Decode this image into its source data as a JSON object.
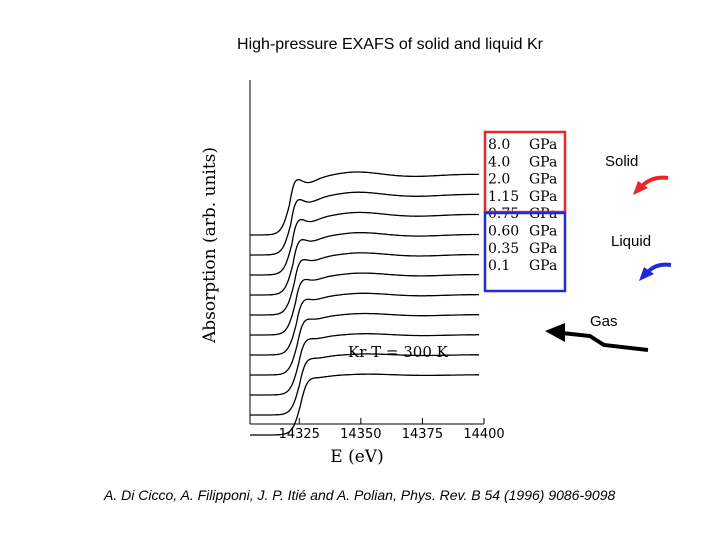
{
  "title": "High-pressure EXAFS of solid and liquid Kr",
  "citation": "A. Di Cicco, A. Filipponi, J. P. Itié and A. Polian, Phys. Rev. B 54 (1996) 9086-9098",
  "annotations": {
    "solid": "Solid",
    "liquid": "Liquid",
    "gas": "Gas",
    "condition": "Kr  T = 300 K"
  },
  "colors": {
    "solid": "#e8262b",
    "liquid": "#1f2bd6",
    "gas": "#000000"
  },
  "chart_data": {
    "type": "line",
    "title": "",
    "xlabel": "E (eV)",
    "ylabel": "Absorption (arb. units)",
    "xlim": [
      14305,
      14400
    ],
    "xticks": [
      14325,
      14350,
      14375,
      14400
    ],
    "x_tick_labels": [
      "14325",
      "14350",
      "14375",
      "14400"
    ],
    "y_ticks_shown": false,
    "grid": false,
    "legend": "right",
    "series": [
      {
        "name": "8.0 GPa",
        "unit": "GPa",
        "pressure": "8.0",
        "phase": "Solid"
      },
      {
        "name": "4.0 GPa",
        "unit": "GPa",
        "pressure": "4.0",
        "phase": "Solid"
      },
      {
        "name": "2.0 GPa",
        "unit": "GPa",
        "pressure": "2.0",
        "phase": "Solid"
      },
      {
        "name": "1.15 GPa",
        "unit": "GPa",
        "pressure": "1.15",
        "phase": "Solid"
      },
      {
        "name": "0.75 GPa",
        "unit": "GPa",
        "pressure": "0.75",
        "phase": "Liquid"
      },
      {
        "name": "0.60 GPa",
        "unit": "GPa",
        "pressure": "0.60",
        "phase": "Liquid"
      },
      {
        "name": "0.35 GPa",
        "unit": "GPa",
        "pressure": "0.35",
        "phase": "Liquid"
      },
      {
        "name": "0.1 GPa",
        "unit": "GPa",
        "pressure": "0.1",
        "phase": "Liquid"
      },
      {
        "name": "",
        "phase": "Gas"
      },
      {
        "name": "",
        "phase": "Gas"
      },
      {
        "name": "",
        "phase": "Gas"
      }
    ]
  }
}
